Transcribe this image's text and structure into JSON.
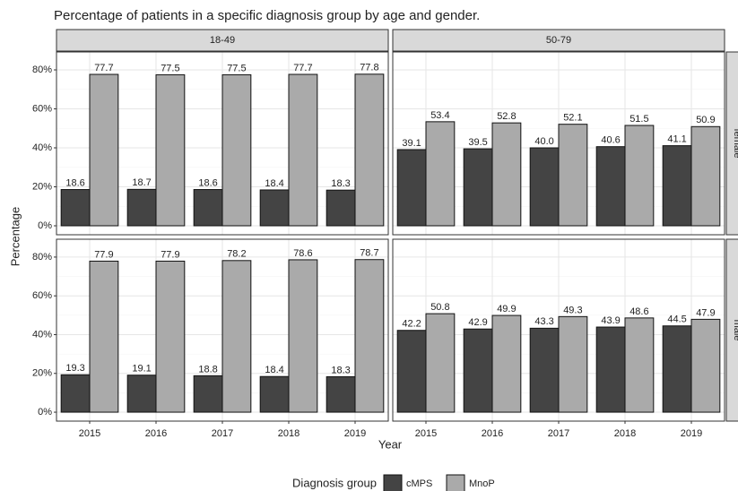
{
  "title": "Percentage of patients in a specific diagnosis group by age and gender.",
  "x_label": "Year",
  "y_label": "Percentage",
  "legend_title": "Diagnosis group",
  "chart_data": [
    {
      "type": "bar",
      "column": "18-49",
      "categories": [
        "2015",
        "2016",
        "2017",
        "2018",
        "2019"
      ],
      "series": [
        {
          "name": "cMPS",
          "color": "#444444",
          "values": [
            18.6,
            18.7,
            18.6,
            18.4,
            18.3
          ],
          "value_labels": [
            "18.6",
            "18.7",
            "18.6",
            "18.4",
            "18.3"
          ]
        },
        {
          "name": "MnoP",
          "color": "#aaaaaa",
          "values": [
            77.7,
            77.5,
            77.5,
            77.7,
            77.8
          ],
          "value_labels": [
            "77.7",
            "77.5",
            "77.5",
            "77.7",
            "77.8"
          ]
        }
      ],
      "ylim": [
        -4.6,
        89.2
      ],
      "yticks": [
        {
          "value": 0,
          "label": "0%"
        },
        {
          "value": 20,
          "label": "20%"
        },
        {
          "value": 40,
          "label": "40%"
        },
        {
          "value": 60,
          "label": "60%"
        },
        {
          "value": 80,
          "label": "80%"
        }
      ],
      "grid": true
    },
    {
      "type": "bar",
      "column": "50-79",
      "row": "female",
      "categories": [
        "2015",
        "2016",
        "2017",
        "2018",
        "2019"
      ],
      "series": [
        {
          "name": "cMPS",
          "color": "#444444",
          "values": [
            39.1,
            39.5,
            40.0,
            40.6,
            41.1
          ],
          "value_labels": [
            "39.1",
            "39.5",
            "40.0",
            "40.6",
            "41.1"
          ]
        },
        {
          "name": "MnoP",
          "color": "#aaaaaa",
          "values": [
            53.4,
            52.8,
            52.1,
            51.5,
            50.9
          ],
          "value_labels": [
            "53.4",
            "52.8",
            "52.1",
            "51.5",
            "50.9"
          ]
        }
      ],
      "ylim": [
        -4.6,
        89.2
      ],
      "yticks": [
        {
          "value": 0,
          "label": "0%"
        },
        {
          "value": 20,
          "label": "20%"
        },
        {
          "value": 40,
          "label": "40%"
        },
        {
          "value": 60,
          "label": "60%"
        },
        {
          "value": 80,
          "label": "80%"
        }
      ],
      "grid": true
    },
    {
      "type": "bar",
      "categories": [
        "2015",
        "2016",
        "2017",
        "2018",
        "2019"
      ],
      "series": [
        {
          "name": "cMPS",
          "color": "#444444",
          "values": [
            19.3,
            19.1,
            18.8,
            18.4,
            18.3
          ],
          "value_labels": [
            "19.3",
            "19.1",
            "18.8",
            "18.4",
            "18.3"
          ]
        },
        {
          "name": "MnoP",
          "color": "#aaaaaa",
          "values": [
            77.9,
            77.9,
            78.2,
            78.6,
            78.7
          ],
          "value_labels": [
            "77.9",
            "77.9",
            "78.2",
            "78.6",
            "78.7"
          ]
        }
      ],
      "ylim": [
        -4.6,
        89.2
      ],
      "yticks": [
        {
          "value": 0,
          "label": "0%"
        },
        {
          "value": 20,
          "label": "20%"
        },
        {
          "value": 40,
          "label": "40%"
        },
        {
          "value": 60,
          "label": "60%"
        },
        {
          "value": 80,
          "label": "80%"
        }
      ],
      "grid": true
    },
    {
      "type": "bar",
      "row": "male",
      "categories": [
        "2015",
        "2016",
        "2017",
        "2018",
        "2019"
      ],
      "series": [
        {
          "name": "cMPS",
          "color": "#444444",
          "values": [
            42.2,
            42.9,
            43.3,
            43.9,
            44.5
          ],
          "value_labels": [
            "42.2",
            "42.9",
            "43.3",
            "43.9",
            "44.5"
          ]
        },
        {
          "name": "MnoP",
          "color": "#aaaaaa",
          "values": [
            50.8,
            49.9,
            49.3,
            48.6,
            47.9
          ],
          "value_labels": [
            "50.8",
            "49.9",
            "49.3",
            "48.6",
            "47.9"
          ]
        }
      ],
      "ylim": [
        -4.6,
        89.2
      ],
      "yticks": [
        {
          "value": 0,
          "label": "0%"
        },
        {
          "value": 20,
          "label": "20%"
        },
        {
          "value": 40,
          "label": "40%"
        },
        {
          "value": 60,
          "label": "60%"
        },
        {
          "value": 80,
          "label": "80%"
        }
      ],
      "grid": true
    }
  ]
}
